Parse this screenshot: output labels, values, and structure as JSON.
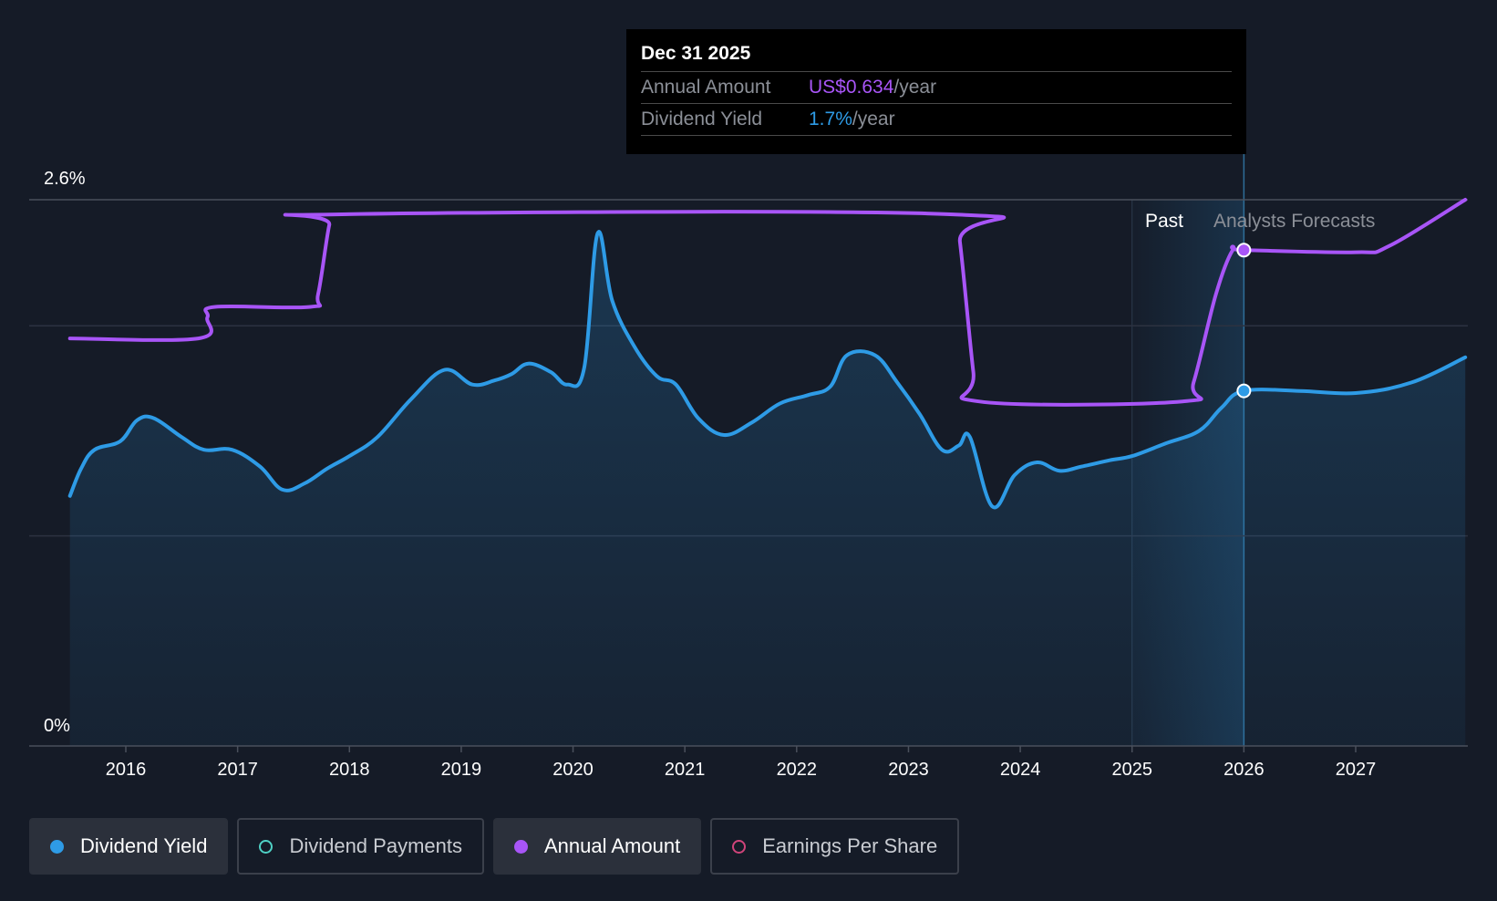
{
  "tooltip": {
    "date": "Dec 31 2025",
    "annual_label": "Annual Amount",
    "annual_value": "US$0.634",
    "annual_unit": "/year",
    "yield_label": "Dividend Yield",
    "yield_value": "1.7%",
    "yield_unit": "/year"
  },
  "legend": [
    {
      "label": "Dividend Yield",
      "color": "#2e9be6",
      "active": true,
      "filled": true
    },
    {
      "label": "Dividend Payments",
      "color": "#4fd1c5",
      "active": false,
      "filled": false
    },
    {
      "label": "Annual Amount",
      "color": "#a855f7",
      "active": true,
      "filled": true
    },
    {
      "label": "Earnings Per Share",
      "color": "#d0447a",
      "active": false,
      "filled": false
    }
  ],
  "colors": {
    "yield": "#2e9be6",
    "annual": "#a855f7",
    "background": "#151b27"
  },
  "chart_data": {
    "type": "line",
    "y_tick_labels": [
      "2.6%",
      "0%"
    ],
    "ylim": [
      0,
      2.6
    ],
    "xlim": [
      2015.0,
      2027.98
    ],
    "x_ticks": [
      2016,
      2017,
      2018,
      2019,
      2020,
      2021,
      2022,
      2023,
      2024,
      2025,
      2026,
      2027
    ],
    "region_labels": {
      "past": "Past",
      "forecast": "Analysts Forecasts"
    },
    "past_end_x": 2026.0,
    "highlight_x": 2026.0,
    "series": [
      {
        "key": "annual",
        "name": "Annual Amount",
        "points": [
          [
            2015.5,
            1.94
          ],
          [
            2016.65,
            1.94
          ],
          [
            2016.73,
            2.04
          ],
          [
            2016.8,
            2.09
          ],
          [
            2017.65,
            2.09
          ],
          [
            2017.72,
            2.15
          ],
          [
            2017.82,
            2.48
          ],
          [
            2017.88,
            2.53
          ],
          [
            2023.4,
            2.53
          ],
          [
            2023.46,
            2.4
          ],
          [
            2023.58,
            1.78
          ],
          [
            2023.63,
            1.64
          ],
          [
            2025.45,
            1.64
          ],
          [
            2025.55,
            1.73
          ],
          [
            2025.75,
            2.15
          ],
          [
            2025.9,
            2.36
          ],
          [
            2026.0,
            2.36
          ],
          [
            2027.0,
            2.35
          ],
          [
            2027.3,
            2.38
          ],
          [
            2027.98,
            2.6
          ]
        ]
      },
      {
        "key": "yield",
        "name": "Dividend Yield",
        "points": [
          [
            2015.5,
            1.19
          ],
          [
            2015.6,
            1.32
          ],
          [
            2015.72,
            1.41
          ],
          [
            2015.95,
            1.45
          ],
          [
            2016.1,
            1.55
          ],
          [
            2016.25,
            1.56
          ],
          [
            2016.5,
            1.47
          ],
          [
            2016.7,
            1.41
          ],
          [
            2016.95,
            1.41
          ],
          [
            2017.2,
            1.33
          ],
          [
            2017.4,
            1.22
          ],
          [
            2017.6,
            1.25
          ],
          [
            2017.8,
            1.32
          ],
          [
            2018.0,
            1.38
          ],
          [
            2018.25,
            1.47
          ],
          [
            2018.55,
            1.65
          ],
          [
            2018.85,
            1.79
          ],
          [
            2019.1,
            1.72
          ],
          [
            2019.3,
            1.74
          ],
          [
            2019.45,
            1.77
          ],
          [
            2019.6,
            1.82
          ],
          [
            2019.8,
            1.78
          ],
          [
            2019.95,
            1.72
          ],
          [
            2020.1,
            1.8
          ],
          [
            2020.22,
            2.44
          ],
          [
            2020.35,
            2.12
          ],
          [
            2020.55,
            1.9
          ],
          [
            2020.75,
            1.76
          ],
          [
            2020.92,
            1.72
          ],
          [
            2021.12,
            1.56
          ],
          [
            2021.35,
            1.48
          ],
          [
            2021.6,
            1.54
          ],
          [
            2021.85,
            1.63
          ],
          [
            2022.1,
            1.67
          ],
          [
            2022.3,
            1.71
          ],
          [
            2022.45,
            1.86
          ],
          [
            2022.7,
            1.86
          ],
          [
            2022.9,
            1.73
          ],
          [
            2023.1,
            1.58
          ],
          [
            2023.3,
            1.41
          ],
          [
            2023.45,
            1.43
          ],
          [
            2023.55,
            1.47
          ],
          [
            2023.75,
            1.14
          ],
          [
            2023.95,
            1.29
          ],
          [
            2024.15,
            1.35
          ],
          [
            2024.35,
            1.31
          ],
          [
            2024.55,
            1.33
          ],
          [
            2024.8,
            1.36
          ],
          [
            2025.0,
            1.38
          ],
          [
            2025.3,
            1.44
          ],
          [
            2025.6,
            1.5
          ],
          [
            2025.8,
            1.61
          ],
          [
            2026.0,
            1.69
          ],
          [
            2026.5,
            1.69
          ],
          [
            2027.0,
            1.68
          ],
          [
            2027.5,
            1.73
          ],
          [
            2027.98,
            1.85
          ]
        ]
      }
    ]
  }
}
